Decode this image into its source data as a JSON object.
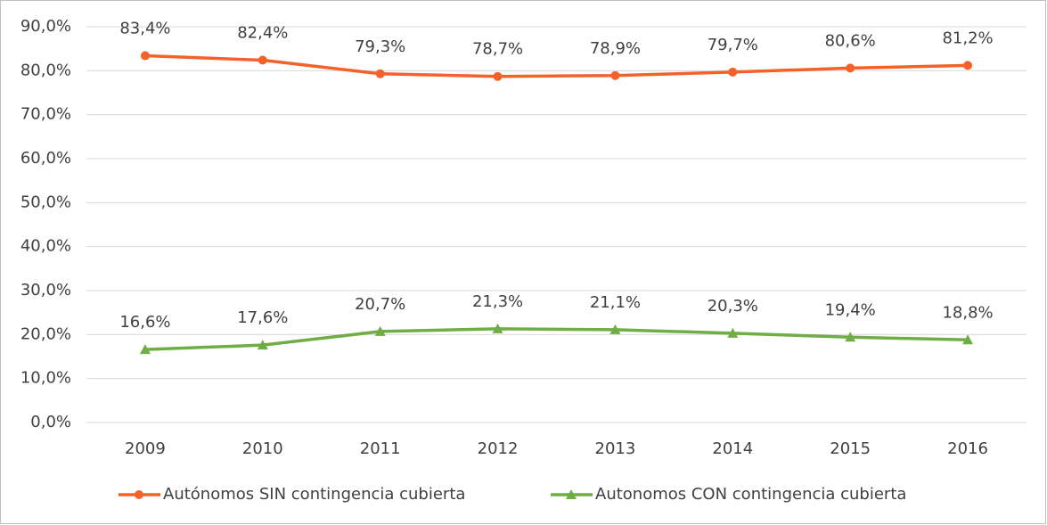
{
  "chart_data": {
    "type": "line",
    "categories": [
      "2009",
      "2010",
      "2011",
      "2012",
      "2013",
      "2014",
      "2015",
      "2016"
    ],
    "series": [
      {
        "name": "Autónomos SIN contingencia cubierta",
        "color": "#f4622a",
        "marker": "circle",
        "values": [
          83.4,
          82.4,
          79.3,
          78.7,
          78.9,
          79.7,
          80.6,
          81.2
        ],
        "value_labels": [
          "83,4%",
          "82,4%",
          "79,3%",
          "78,7%",
          "78,9%",
          "79,7%",
          "80,6%",
          "81,2%"
        ]
      },
      {
        "name": "Autonomos CON contingencia cubierta",
        "color": "#70ad47",
        "marker": "triangle",
        "values": [
          16.6,
          17.6,
          20.7,
          21.3,
          21.1,
          20.3,
          19.4,
          18.8
        ],
        "value_labels": [
          "16,6%",
          "17,6%",
          "20,7%",
          "21,3%",
          "21,1%",
          "20,3%",
          "19,4%",
          "18,8%"
        ]
      }
    ],
    "ylim": [
      0,
      90
    ],
    "yticks": [
      {
        "value": 0,
        "label": "0,0%"
      },
      {
        "value": 10,
        "label": "10,0%"
      },
      {
        "value": 20,
        "label": "20,0%"
      },
      {
        "value": 30,
        "label": "30,0%"
      },
      {
        "value": 40,
        "label": "40,0%"
      },
      {
        "value": 50,
        "label": "50,0%"
      },
      {
        "value": 60,
        "label": "60,0%"
      },
      {
        "value": 70,
        "label": "70,0%"
      },
      {
        "value": 80,
        "label": "80,0%"
      },
      {
        "value": 90,
        "label": "90,0%"
      }
    ],
    "grid": true,
    "legend": "bottom"
  }
}
